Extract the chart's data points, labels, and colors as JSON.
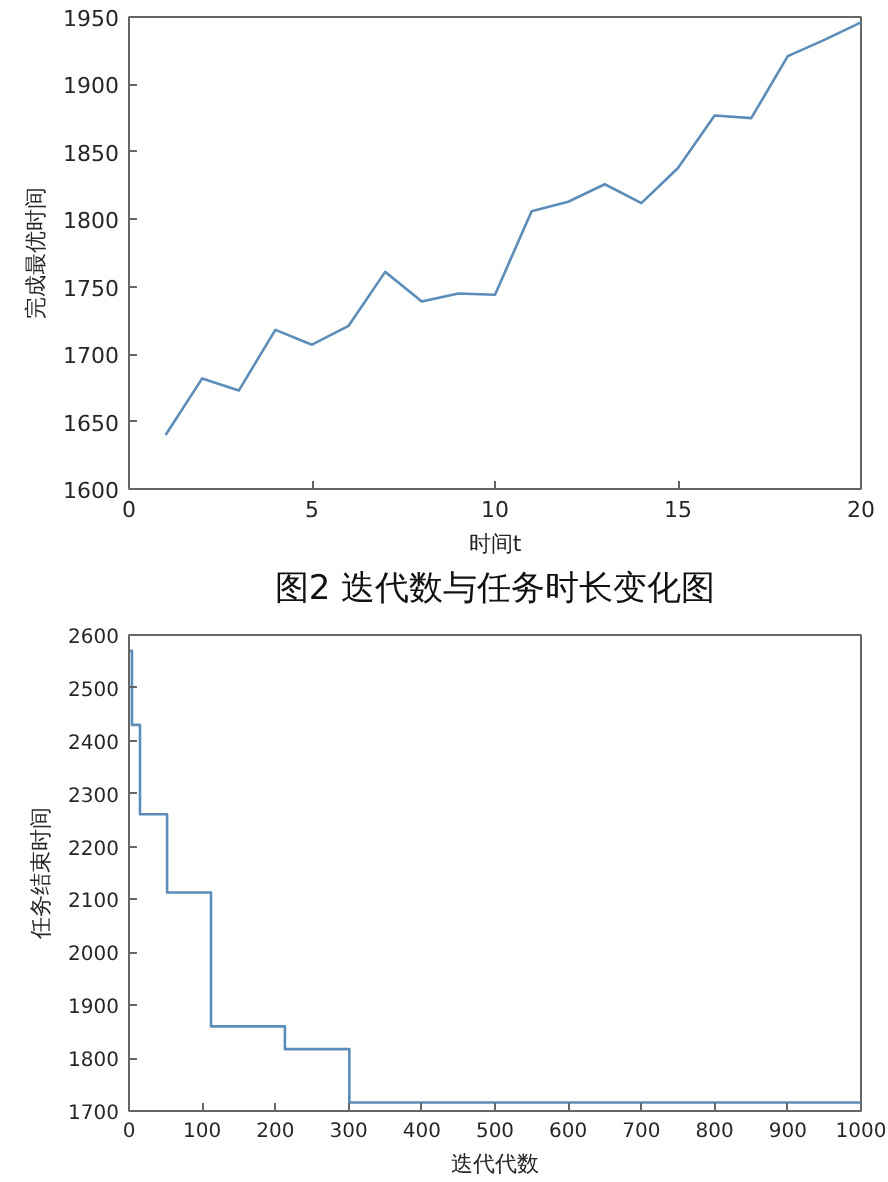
{
  "chart_data": [
    {
      "type": "line",
      "xlabel": "时间t",
      "ylabel": "完成最优时间",
      "annotations": [
        "图2 迭代数与任务时长变化图"
      ],
      "x": [
        1,
        2,
        3,
        4,
        5,
        6,
        7,
        8,
        9,
        10,
        11,
        12,
        13,
        14,
        15,
        16,
        17,
        18,
        19,
        20
      ],
      "series": [
        {
          "color": "#5b8db8",
          "values": [
            1640,
            1682,
            1673,
            1718,
            1707,
            1721,
            1761,
            1739,
            1745,
            1744,
            1806,
            1813,
            1826,
            1812,
            1838,
            1877,
            1875,
            1921,
            1933,
            1946
          ]
        }
      ],
      "xlim": [
        0,
        20
      ],
      "ylim": [
        1600,
        1950
      ],
      "xticks": [
        0,
        5,
        10,
        15,
        20
      ],
      "yticks": [
        1600,
        1650,
        1700,
        1750,
        1800,
        1850,
        1900,
        1950
      ],
      "grid": false,
      "line_style": "solid"
    },
    {
      "type": "step",
      "xlabel": "迭代代数",
      "ylabel": "任务结束时间",
      "x": [
        0,
        4,
        15,
        52,
        112,
        213,
        301,
        1000
      ],
      "series": [
        {
          "color": "#5b8db8",
          "values": [
            2570,
            2430,
            2261,
            2113,
            1860,
            1817,
            1716,
            1716
          ]
        }
      ],
      "xlim": [
        0,
        1000
      ],
      "ylim": [
        1700,
        2600
      ],
      "xticks": [
        0,
        100,
        200,
        300,
        400,
        500,
        600,
        700,
        800,
        900,
        1000
      ],
      "yticks": [
        1700,
        1800,
        1900,
        2000,
        2100,
        2200,
        2300,
        2400,
        2500,
        2600
      ],
      "grid": false,
      "line_style": "solid"
    }
  ]
}
